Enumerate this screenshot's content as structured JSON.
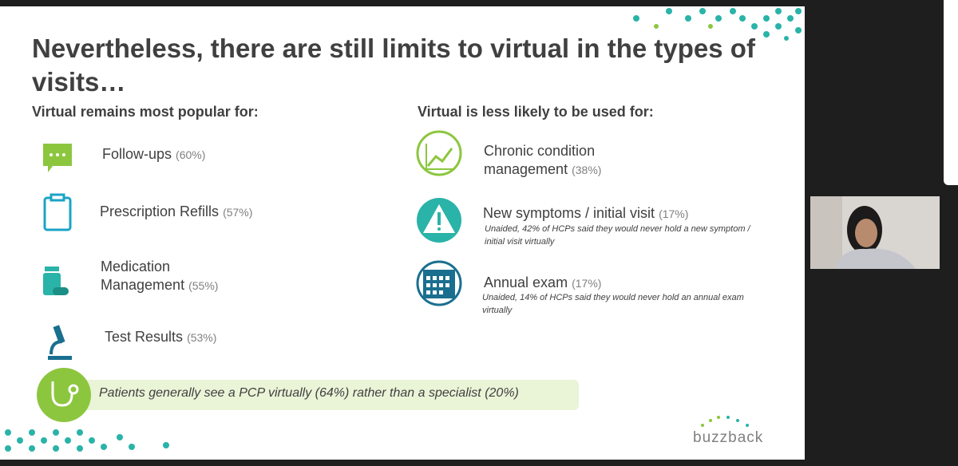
{
  "slide": {
    "title": "Nevertheless, there are still limits to virtual in the types of visits…",
    "left": {
      "heading": "Virtual remains most popular for:",
      "items": [
        {
          "label": "Follow-ups",
          "pct": "(60%)"
        },
        {
          "label": "Prescription Refills",
          "pct": "(57%)"
        },
        {
          "label": "Medication Management",
          "pct": "(55%)"
        },
        {
          "label": "Test Results",
          "pct": "(53%)"
        }
      ]
    },
    "right": {
      "heading": "Virtual is less likely to be used for:",
      "items": [
        {
          "label": "Chronic condition management",
          "pct": "(38%)"
        },
        {
          "label": "New symptoms / initial visit",
          "pct": "(17%)",
          "note": "Unaided, 42% of HCPs said they would never hold a new symptom / initial visit virtually"
        },
        {
          "label": "Annual exam",
          "pct": "(17%)",
          "note": "Unaided, 14% of HCPs said they would never hold an annual exam virtually"
        }
      ]
    },
    "callout": "Patients generally see a PCP virtually (64%) rather than a specialist (20%)",
    "logo": "buzzback"
  }
}
